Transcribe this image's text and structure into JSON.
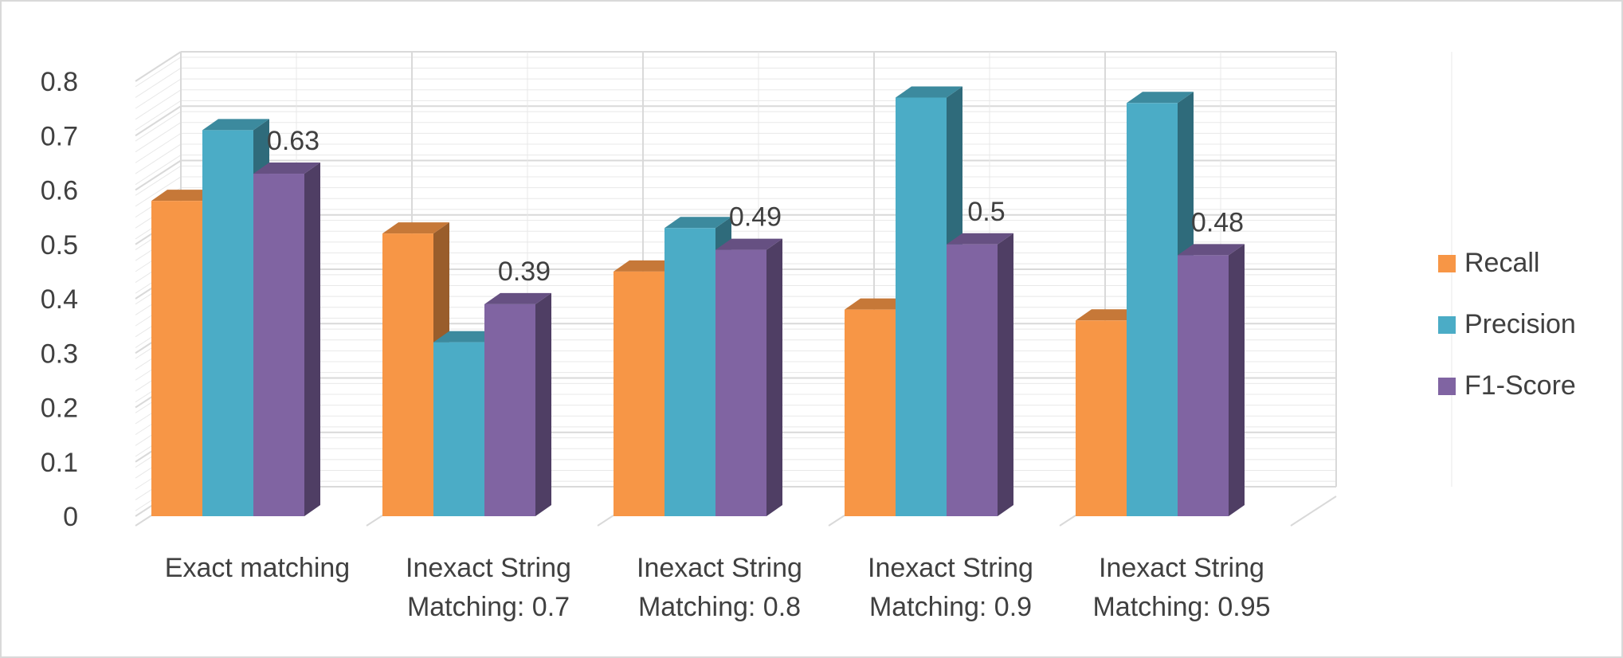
{
  "chart_data": {
    "type": "bar",
    "title": "",
    "xlabel": "",
    "ylabel": "",
    "categories": [
      [
        "Exact matching"
      ],
      [
        "Inexact String",
        "Matching: 0.7"
      ],
      [
        "Inexact String",
        "Matching: 0.8"
      ],
      [
        "Inexact String",
        "Matching: 0.9"
      ],
      [
        "Inexact String",
        "Matching: 0.95"
      ]
    ],
    "series": [
      {
        "name": "Recall",
        "color": "#f79646",
        "values": [
          0.58,
          0.52,
          0.45,
          0.38,
          0.36
        ]
      },
      {
        "name": "Precision",
        "color": "#4bacc6",
        "values": [
          0.71,
          0.32,
          0.53,
          0.77,
          0.76
        ]
      },
      {
        "name": "F1-Score",
        "color": "#8064a2",
        "values": [
          0.63,
          0.39,
          0.49,
          0.5,
          0.48
        ]
      }
    ],
    "data_labels": {
      "series": "F1-Score",
      "texts": [
        "0.63",
        "0.39",
        "0.49",
        "0.5",
        "0.48"
      ]
    },
    "ylim": [
      0,
      0.8
    ],
    "yticks": [
      "0",
      "0.1",
      "0.2",
      "0.3",
      "0.4",
      "0.5",
      "0.6",
      "0.7",
      "0.8"
    ],
    "grid": true,
    "legend_position": "right",
    "style": "3d-clustered-column"
  }
}
